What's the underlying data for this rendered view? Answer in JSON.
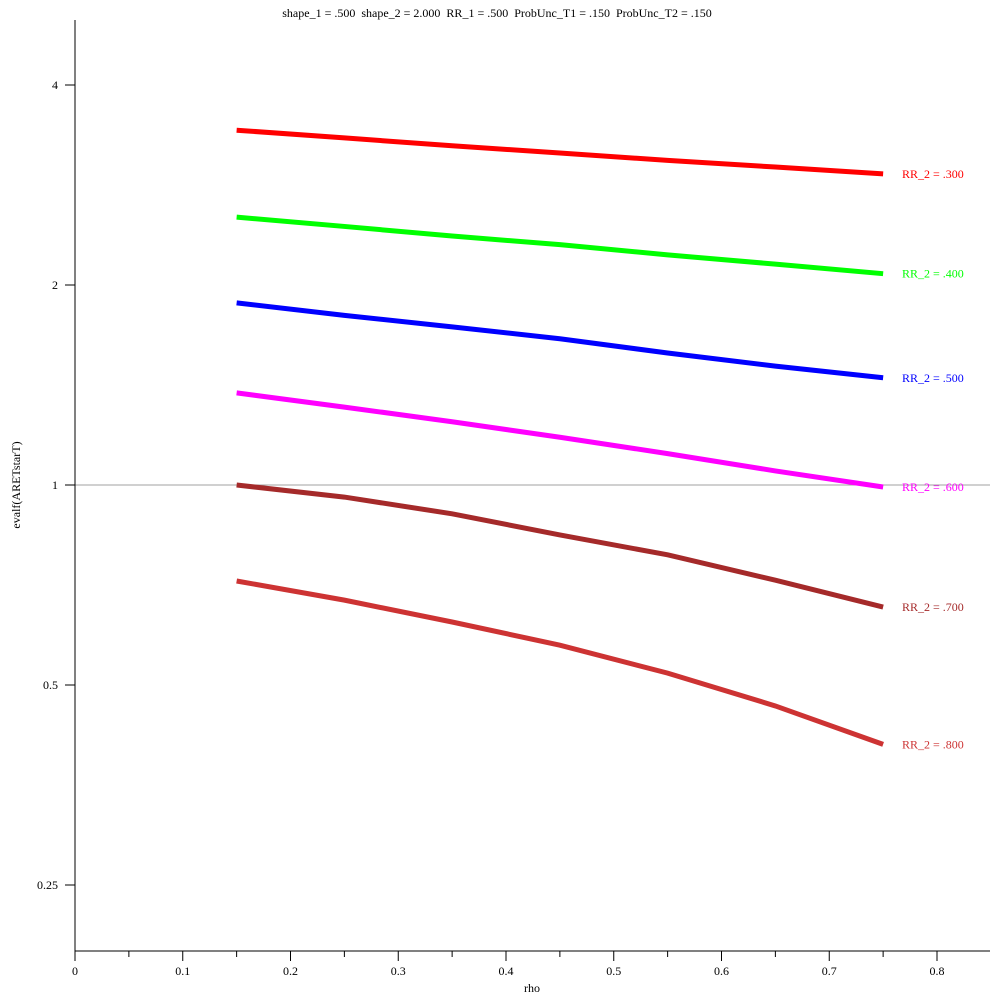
{
  "chart_data": {
    "type": "line",
    "title": "shape_1 = .500  shape_2 = 2.000  RR_1 = .500  ProbUnc_T1 = .150  ProbUnc_T2 = .150",
    "xlabel": "rho",
    "ylabel": "evalf(ARETstarT)",
    "xlim": [
      0,
      0.85
    ],
    "ylim": [
      0.2,
      5.0
    ],
    "yscale": "log",
    "grid": false,
    "reference_line": 1,
    "xticks": [
      0,
      0.1,
      0.2,
      0.3,
      0.4,
      0.5,
      0.6,
      0.7,
      0.8
    ],
    "xtick_labels": [
      "0",
      "0.1",
      "0.2",
      "0.3",
      "0.4",
      "0.5",
      "0.6",
      "0.7",
      "0.8"
    ],
    "yticks": [
      0.25,
      0.5,
      1,
      2,
      4
    ],
    "ytick_labels": [
      "0.25",
      "0.5",
      "1",
      "2",
      "4"
    ],
    "x": [
      0.15,
      0.25,
      0.35,
      0.45,
      0.55,
      0.65,
      0.75
    ],
    "series": [
      {
        "name": "RR_2 = .300",
        "color": "#ff0000",
        "values": [
          3.42,
          3.33,
          3.24,
          3.16,
          3.08,
          3.01,
          2.94
        ]
      },
      {
        "name": "RR_2 = .400",
        "color": "#00ff00",
        "values": [
          2.53,
          2.45,
          2.37,
          2.3,
          2.22,
          2.15,
          2.08
        ]
      },
      {
        "name": "RR_2 = .500",
        "color": "#0000ff",
        "values": [
          1.88,
          1.8,
          1.73,
          1.66,
          1.58,
          1.51,
          1.45
        ]
      },
      {
        "name": "RR_2 = .600",
        "color": "#ff00ff",
        "values": [
          1.376,
          1.31,
          1.245,
          1.18,
          1.115,
          1.05,
          0.993
        ]
      },
      {
        "name": "RR_2 = .700",
        "color": "#a52a2a",
        "values": [
          1.0,
          0.959,
          0.905,
          0.841,
          0.785,
          0.719,
          0.655
        ]
      },
      {
        "name": "RR_2 = .800",
        "color": "#cd3333",
        "values": [
          0.717,
          0.671,
          0.622,
          0.574,
          0.521,
          0.465,
          0.407
        ]
      }
    ]
  }
}
